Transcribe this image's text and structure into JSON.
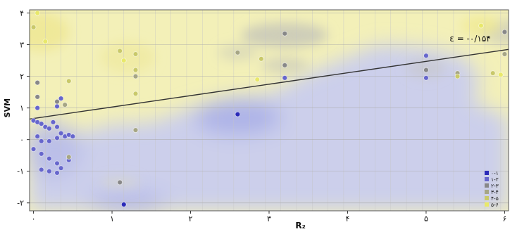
{
  "chart_data": {
    "type": "scatter",
    "title": "",
    "xlabel": "R₂",
    "ylabel": "SVM",
    "xlim": [
      -0.05,
      6.05
    ],
    "ylim": [
      -2.25,
      4.1
    ],
    "x_ticks": [
      0,
      1,
      2,
      3,
      4,
      5,
      6
    ],
    "x_tick_labels": [
      "۰",
      "۱",
      "۲",
      "۳",
      "۴",
      "۵",
      "۶"
    ],
    "y_ticks": [
      -2,
      -1,
      0,
      1,
      2,
      3,
      4
    ],
    "y_tick_labels": [
      "-۲",
      "-۱",
      "۰",
      "۱",
      "۲",
      "۳",
      "۴"
    ],
    "grid": true,
    "legend_position": "bottom-right",
    "line_label": "ε = -۰/۱۵۴",
    "boundary_line": {
      "x": [
        -0.05,
        6.05
      ],
      "y": [
        0.65,
        2.85
      ]
    },
    "colors": {
      "background_yellow": "#f3f0b8",
      "background_blue": "#c9cdee",
      "line": "#333333"
    },
    "series": [
      {
        "name": "۰-۱",
        "color": "#2a2ab8",
        "points": [
          {
            "x": 2.6,
            "y": 0.8
          },
          {
            "x": 1.15,
            "y": -2.05
          }
        ]
      },
      {
        "name": "۱-۲",
        "color": "#6666cc",
        "points": [
          {
            "x": 3.2,
            "y": 1.95
          },
          {
            "x": 5.0,
            "y": 2.65
          },
          {
            "x": 5.0,
            "y": 1.95
          },
          {
            "x": 0.0,
            "y": 0.6
          },
          {
            "x": 0.05,
            "y": 0.55
          },
          {
            "x": 0.1,
            "y": 0.5
          },
          {
            "x": 0.15,
            "y": 0.4
          },
          {
            "x": 0.2,
            "y": 0.35
          },
          {
            "x": 0.25,
            "y": 0.55
          },
          {
            "x": 0.3,
            "y": 0.4
          },
          {
            "x": 0.35,
            "y": 0.2
          },
          {
            "x": 0.4,
            "y": 0.1
          },
          {
            "x": 0.45,
            "y": 0.15
          },
          {
            "x": 0.5,
            "y": 0.1
          },
          {
            "x": 0.05,
            "y": 0.1
          },
          {
            "x": 0.1,
            "y": -0.05
          },
          {
            "x": 0.2,
            "y": -0.05
          },
          {
            "x": 0.3,
            "y": 0.05
          },
          {
            "x": 0.0,
            "y": -0.3
          },
          {
            "x": 0.1,
            "y": -0.45
          },
          {
            "x": 0.2,
            "y": -0.6
          },
          {
            "x": 0.3,
            "y": -0.75
          },
          {
            "x": 0.1,
            "y": -0.95
          },
          {
            "x": 0.2,
            "y": -1.0
          },
          {
            "x": 0.3,
            "y": -1.05
          },
          {
            "x": 0.35,
            "y": -0.9
          },
          {
            "x": 0.45,
            "y": -0.65
          },
          {
            "x": 0.05,
            "y": 1.0
          },
          {
            "x": 0.3,
            "y": 1.05
          },
          {
            "x": 0.35,
            "y": 1.3
          }
        ]
      },
      {
        "name": "۲-۳",
        "color": "#888888",
        "points": [
          {
            "x": 3.2,
            "y": 3.35
          },
          {
            "x": 3.2,
            "y": 2.35
          },
          {
            "x": 5.0,
            "y": 2.2
          },
          {
            "x": 6.0,
            "y": 3.4
          },
          {
            "x": 1.1,
            "y": -1.35
          },
          {
            "x": 0.05,
            "y": 1.8
          },
          {
            "x": 0.3,
            "y": 1.2
          },
          {
            "x": 0.05,
            "y": 1.35
          }
        ]
      },
      {
        "name": "۳-۴",
        "color": "#a6a684",
        "points": [
          {
            "x": 2.6,
            "y": 2.75
          },
          {
            "x": 1.3,
            "y": 2.0
          },
          {
            "x": 1.3,
            "y": 0.3
          },
          {
            "x": 5.4,
            "y": 2.1
          },
          {
            "x": 6.0,
            "y": 2.7
          },
          {
            "x": 0.4,
            "y": 1.1
          },
          {
            "x": 0.45,
            "y": -0.55
          }
        ]
      },
      {
        "name": "۴-۵",
        "color": "#c9c96a",
        "points": [
          {
            "x": 1.1,
            "y": 2.8
          },
          {
            "x": 1.3,
            "y": 2.7
          },
          {
            "x": 1.3,
            "y": 2.2
          },
          {
            "x": 1.3,
            "y": 1.45
          },
          {
            "x": 2.9,
            "y": 2.55
          },
          {
            "x": 5.4,
            "y": 2.0
          },
          {
            "x": 0.0,
            "y": 3.55
          },
          {
            "x": 0.45,
            "y": 1.85
          },
          {
            "x": 5.85,
            "y": 2.1
          }
        ]
      },
      {
        "name": "۵-۶",
        "color": "#e8e86a",
        "points": [
          {
            "x": 0.05,
            "y": 4.0
          },
          {
            "x": 5.7,
            "y": 3.6
          },
          {
            "x": 1.15,
            "y": 2.5
          },
          {
            "x": 2.85,
            "y": 1.9
          },
          {
            "x": 0.15,
            "y": 3.1
          },
          {
            "x": 5.95,
            "y": 2.05
          }
        ]
      }
    ]
  }
}
